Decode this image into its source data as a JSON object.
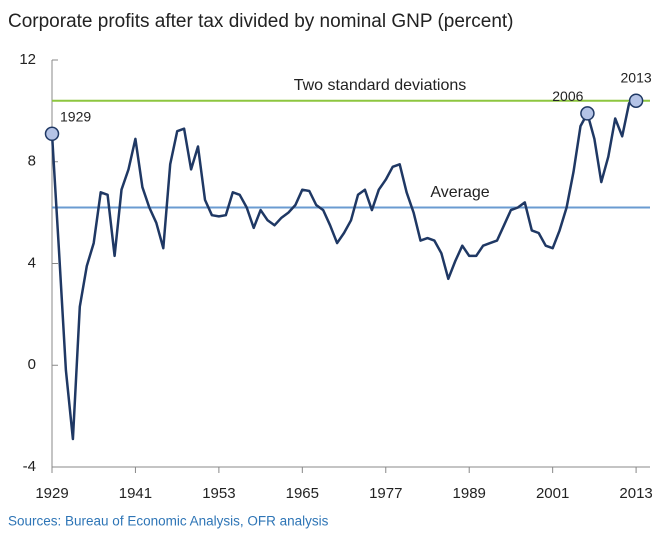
{
  "chart_data": {
    "type": "line",
    "title": "Corporate profits after tax divided by nominal GNP (percent)",
    "source": "Sources: Bureau of Economic Analysis, OFR analysis",
    "x": [
      1929,
      1930,
      1931,
      1932,
      1933,
      1934,
      1935,
      1936,
      1937,
      1938,
      1939,
      1940,
      1941,
      1942,
      1943,
      1944,
      1945,
      1946,
      1947,
      1948,
      1949,
      1950,
      1951,
      1952,
      1953,
      1954,
      1955,
      1956,
      1957,
      1958,
      1959,
      1960,
      1961,
      1962,
      1963,
      1964,
      1965,
      1966,
      1967,
      1968,
      1969,
      1970,
      1971,
      1972,
      1973,
      1974,
      1975,
      1976,
      1977,
      1978,
      1979,
      1980,
      1981,
      1982,
      1983,
      1984,
      1985,
      1986,
      1987,
      1988,
      1989,
      1990,
      1991,
      1992,
      1993,
      1994,
      1995,
      1996,
      1997,
      1998,
      1999,
      2000,
      2001,
      2002,
      2003,
      2004,
      2005,
      2006,
      2007,
      2008,
      2009,
      2010,
      2011,
      2012,
      2013
    ],
    "series": [
      {
        "color": "#1f3864",
        "values": [
          9.1,
          4.5,
          -0.2,
          -2.9,
          2.3,
          3.9,
          4.8,
          6.8,
          6.7,
          4.3,
          6.9,
          7.7,
          8.9,
          7.0,
          6.2,
          5.6,
          4.6,
          7.9,
          9.2,
          9.3,
          7.7,
          8.6,
          6.5,
          5.9,
          5.85,
          5.9,
          6.8,
          6.7,
          6.2,
          5.4,
          6.1,
          5.7,
          5.5,
          5.8,
          6.0,
          6.3,
          6.9,
          6.85,
          6.3,
          6.1,
          5.5,
          4.8,
          5.2,
          5.7,
          6.7,
          6.9,
          6.1,
          6.9,
          7.3,
          7.8,
          7.9,
          6.8,
          6.0,
          4.9,
          5.0,
          4.9,
          4.4,
          3.4,
          4.1,
          4.7,
          4.3,
          4.3,
          4.7,
          4.8,
          4.9,
          5.5,
          6.1,
          6.2,
          6.4,
          5.3,
          5.2,
          4.7,
          4.6,
          5.3,
          6.2,
          7.6,
          9.4,
          9.9,
          8.9,
          7.2,
          8.2,
          9.7,
          9.0,
          10.3,
          10.4
        ]
      }
    ],
    "reference_lines": [
      {
        "label": "Two standard deviations",
        "value": 10.4,
        "color": "#8dc63f"
      },
      {
        "label": "Average",
        "value": 6.2,
        "color": "#6a9bd1"
      }
    ],
    "highlights": [
      {
        "x": 1929,
        "label": "1929"
      },
      {
        "x": 2006,
        "label": "2006"
      },
      {
        "x": 2013,
        "label": "2013"
      }
    ],
    "xlim": [
      1929,
      2015
    ],
    "xticks": [
      1929,
      1941,
      1953,
      1965,
      1977,
      1989,
      2001,
      2013
    ],
    "ylim": [
      -4,
      12
    ],
    "yticks": [
      -4,
      0,
      4,
      8,
      12
    ]
  }
}
